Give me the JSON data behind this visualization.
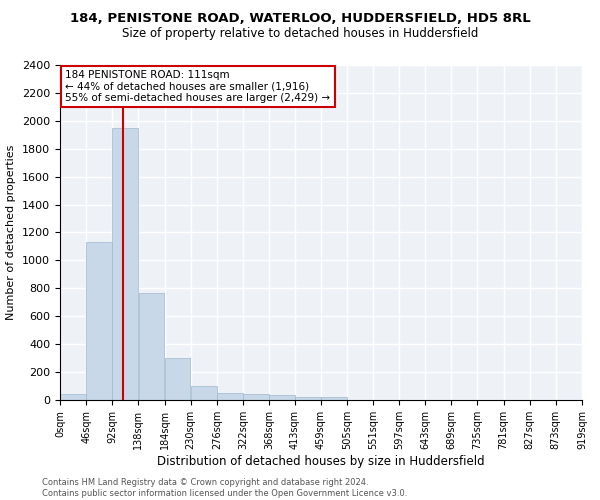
{
  "title_line1": "184, PENISTONE ROAD, WATERLOO, HUDDERSFIELD, HD5 8RL",
  "title_line2": "Size of property relative to detached houses in Huddersfield",
  "xlabel": "Distribution of detached houses by size in Huddersfield",
  "ylabel": "Number of detached properties",
  "bar_color": "#c8d8e8",
  "bar_edgecolor": "#a0b8d0",
  "vline_color": "#cc0000",
  "vline_x": 111,
  "bin_edges": [
    0,
    46,
    92,
    138,
    184,
    230,
    276,
    322,
    368,
    413,
    459,
    505,
    551,
    597,
    643,
    689,
    735,
    781,
    827,
    873,
    919
  ],
  "bar_heights": [
    40,
    1130,
    1950,
    770,
    300,
    100,
    50,
    45,
    35,
    25,
    25,
    0,
    0,
    0,
    0,
    0,
    0,
    0,
    0,
    0
  ],
  "ylim": [
    0,
    2400
  ],
  "annotation_text": "184 PENISTONE ROAD: 111sqm\n← 44% of detached houses are smaller (1,916)\n55% of semi-detached houses are larger (2,429) →",
  "annotation_box_color": "white",
  "annotation_box_edgecolor": "#cc0000",
  "footer_text": "Contains HM Land Registry data © Crown copyright and database right 2024.\nContains public sector information licensed under the Open Government Licence v3.0.",
  "bg_color": "#eef2f7",
  "grid_color": "white",
  "tick_labels": [
    "0sqm",
    "46sqm",
    "92sqm",
    "138sqm",
    "184sqm",
    "230sqm",
    "276sqm",
    "322sqm",
    "368sqm",
    "413sqm",
    "459sqm",
    "505sqm",
    "551sqm",
    "597sqm",
    "643sqm",
    "689sqm",
    "735sqm",
    "781sqm",
    "827sqm",
    "873sqm",
    "919sqm"
  ],
  "title1_fontsize": 9.5,
  "title2_fontsize": 8.5,
  "ylabel_fontsize": 8,
  "xlabel_fontsize": 8.5,
  "tick_fontsize": 7,
  "annot_fontsize": 7.5,
  "footer_fontsize": 6
}
